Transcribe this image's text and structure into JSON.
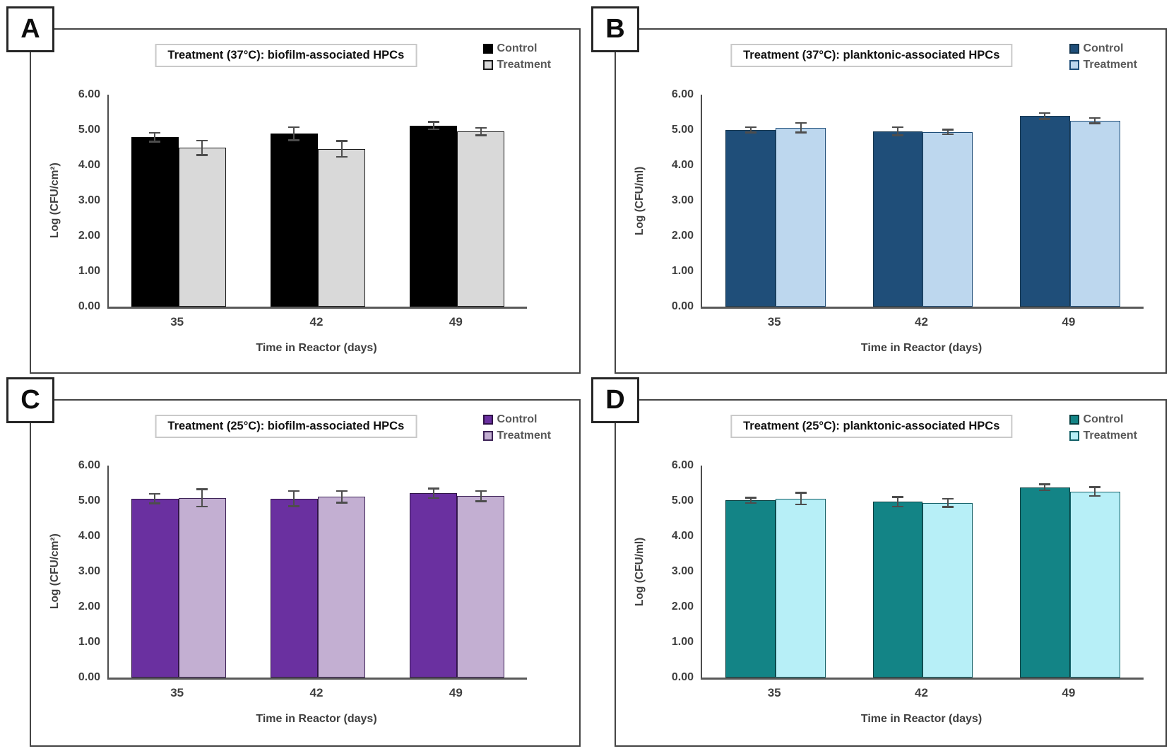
{
  "figure": {
    "background": "#ffffff",
    "error_bar_color": "#4d4d4d",
    "panel_letters": [
      "A",
      "B",
      "C",
      "D"
    ]
  },
  "chart_data": [
    {
      "type": "bar",
      "panel": "A",
      "title": "Treatment (37°C): biofilm-associated HPCs",
      "xlabel": "Time in Reactor (days)",
      "ylabel": "Log (CFU/cm²)",
      "ylim": [
        0,
        6
      ],
      "ytick_step": 1,
      "ytick_labels": [
        "6.00",
        "5.00",
        "4.00",
        "3.00",
        "2.00",
        "1.00",
        "0.00"
      ],
      "categories": [
        "35",
        "42",
        "49"
      ],
      "grid": false,
      "legend_position": "top-right",
      "series": [
        {
          "name": "Control",
          "color": "#000000",
          "border": "#000000",
          "values": [
            4.8,
            4.9,
            5.13
          ],
          "errors": [
            0.15,
            0.21,
            0.13
          ]
        },
        {
          "name": "Treatment",
          "color": "#d9d9d9",
          "border": "#1a1a1a",
          "values": [
            4.5,
            4.47,
            4.96
          ],
          "errors": [
            0.23,
            0.25,
            0.13
          ]
        }
      ]
    },
    {
      "type": "bar",
      "panel": "B",
      "title": "Treatment (37°C): planktonic-associated HPCs",
      "xlabel": "Time in Reactor (days)",
      "ylabel": "Log (CFU/ml)",
      "ylim": [
        0,
        6
      ],
      "ytick_step": 1,
      "ytick_labels": [
        "6.00",
        "5.00",
        "4.00",
        "3.00",
        "2.00",
        "1.00",
        "0.00"
      ],
      "categories": [
        "35",
        "42",
        "49"
      ],
      "grid": false,
      "legend_position": "top-right",
      "series": [
        {
          "name": "Control",
          "color": "#1f4e79",
          "border": "#16364f",
          "values": [
            5.01,
            4.97,
            5.4
          ],
          "errors": [
            0.1,
            0.14,
            0.11
          ]
        },
        {
          "name": "Treatment",
          "color": "#bdd7ee",
          "border": "#1f4e79",
          "values": [
            5.07,
            4.95,
            5.27
          ],
          "errors": [
            0.16,
            0.09,
            0.1
          ]
        }
      ]
    },
    {
      "type": "bar",
      "panel": "C",
      "title": "Treatment (25°C): biofilm-associated HPCs",
      "xlabel": "Time in Reactor (days)",
      "ylabel": "Log (CFU/cm²)",
      "ylim": [
        0,
        6
      ],
      "ytick_step": 1,
      "ytick_labels": [
        "6.00",
        "5.00",
        "4.00",
        "3.00",
        "2.00",
        "1.00",
        "0.00"
      ],
      "categories": [
        "35",
        "42",
        "49"
      ],
      "grid": false,
      "legend_position": "top-right",
      "series": [
        {
          "name": "Control",
          "color": "#6a30a0",
          "border": "#2f1247",
          "values": [
            5.07,
            5.07,
            5.22
          ],
          "errors": [
            0.16,
            0.24,
            0.16
          ]
        },
        {
          "name": "Treatment",
          "color": "#c3afd2",
          "border": "#3d2356",
          "values": [
            5.09,
            5.12,
            5.14
          ],
          "errors": [
            0.27,
            0.19,
            0.17
          ]
        }
      ]
    },
    {
      "type": "bar",
      "panel": "D",
      "title": "Treatment (25°C): planktonic-associated HPCs",
      "xlabel": "Time in Reactor (days)",
      "ylabel": "Log (CFU/ml)",
      "ylim": [
        0,
        6
      ],
      "ytick_step": 1,
      "ytick_labels": [
        "6.00",
        "5.00",
        "4.00",
        "3.00",
        "2.00",
        "1.00",
        "0.00"
      ],
      "categories": [
        "35",
        "42",
        "49"
      ],
      "grid": false,
      "legend_position": "top-right",
      "series": [
        {
          "name": "Control",
          "color": "#138486",
          "border": "#093f40",
          "values": [
            5.02,
            4.98,
            5.39
          ],
          "errors": [
            0.1,
            0.16,
            0.11
          ]
        },
        {
          "name": "Treatment",
          "color": "#b7eff7",
          "border": "#135f66",
          "values": [
            5.07,
            4.95,
            5.27
          ],
          "errors": [
            0.19,
            0.14,
            0.15
          ]
        }
      ]
    }
  ]
}
